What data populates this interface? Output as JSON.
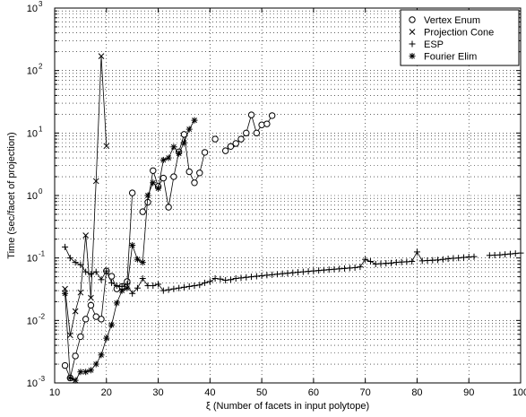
{
  "chart_data": {
    "type": "line",
    "title": "",
    "xlabel": "ξ (Number of facets in input polytope)",
    "ylabel": "Time (sec/facet of projection)",
    "xlim": [
      10,
      100
    ],
    "ylim": [
      0.001,
      1000
    ],
    "yscale": "log",
    "grid": true,
    "legend_position": "top-right",
    "x_ticks": [
      10,
      20,
      30,
      40,
      50,
      60,
      70,
      80,
      90,
      100
    ],
    "x_tick_labels": [
      "10",
      "20",
      "30",
      "40",
      "50",
      "60",
      "70",
      "80",
      "90",
      "100"
    ],
    "y_ticks": [
      0.001,
      0.01,
      0.1,
      1,
      10,
      100,
      1000
    ],
    "y_tick_labels": [
      {
        "base": "10",
        "exp": "-3"
      },
      {
        "base": "10",
        "exp": "-2"
      },
      {
        "base": "10",
        "exp": "-1"
      },
      {
        "base": "10",
        "exp": "0"
      },
      {
        "base": "10",
        "exp": "1"
      },
      {
        "base": "10",
        "exp": "2"
      },
      {
        "base": "10",
        "exp": "3"
      }
    ],
    "series": [
      {
        "name": "Vertex Enum",
        "marker": "circle",
        "points": [
          [
            12,
            0.0019
          ],
          [
            13,
            0.0012
          ],
          [
            14,
            0.0027
          ],
          [
            15,
            0.0055
          ],
          [
            16,
            0.0105
          ],
          [
            17,
            0.0175
          ],
          [
            18,
            0.0115
          ],
          [
            19,
            0.0105
          ],
          [
            20,
            0.062
          ],
          [
            21,
            0.051
          ],
          [
            22,
            0.032
          ],
          [
            23,
            0.035
          ],
          [
            24,
            0.042
          ],
          [
            25,
            1.1
          ],
          [
            27,
            0.55
          ],
          [
            28,
            0.78
          ],
          [
            29,
            2.5
          ],
          [
            30,
            1.4
          ],
          [
            31,
            1.9
          ],
          [
            32,
            0.65
          ],
          [
            33,
            2.0
          ],
          [
            34,
            5.0
          ],
          [
            35,
            9.5
          ],
          [
            36,
            2.4
          ],
          [
            37,
            1.6
          ],
          [
            38,
            2.3
          ],
          [
            39,
            4.9
          ],
          [
            41,
            8.0
          ],
          [
            43,
            5.2
          ],
          [
            44,
            6.1
          ],
          [
            45,
            6.8
          ],
          [
            46,
            8.0
          ],
          [
            47,
            10.0
          ],
          [
            48,
            19.5
          ],
          [
            49,
            10.0
          ],
          [
            50,
            13.5
          ],
          [
            51,
            14.0
          ],
          [
            52,
            19.0
          ]
        ]
      },
      {
        "name": "Projection Cone",
        "marker": "x",
        "points": [
          [
            12,
            0.032
          ],
          [
            13,
            0.0058
          ],
          [
            14,
            0.014
          ],
          [
            15,
            0.028
          ],
          [
            16,
            0.23
          ],
          [
            17,
            0.023
          ],
          [
            18,
            1.7
          ],
          [
            19,
            170
          ],
          [
            20,
            6.2
          ]
        ]
      },
      {
        "name": "ESP",
        "marker": "plus",
        "points": [
          [
            12,
            0.15
          ],
          [
            13,
            0.1
          ],
          [
            14,
            0.085
          ],
          [
            15,
            0.078
          ],
          [
            16,
            0.06
          ],
          [
            17,
            0.055
          ],
          [
            18,
            0.06
          ],
          [
            19,
            0.045
          ],
          [
            20,
            0.062
          ],
          [
            21,
            0.04
          ],
          [
            22,
            0.036
          ],
          [
            23,
            0.035
          ],
          [
            24,
            0.038
          ],
          [
            25,
            0.027
          ],
          [
            26,
            0.033
          ],
          [
            27,
            0.047
          ],
          [
            28,
            0.036
          ],
          [
            29,
            0.036
          ],
          [
            30,
            0.038
          ],
          [
            31,
            0.03
          ],
          [
            32,
            0.031
          ],
          [
            33,
            0.032
          ],
          [
            34,
            0.033
          ],
          [
            35,
            0.034
          ],
          [
            36,
            0.035
          ],
          [
            37,
            0.036
          ],
          [
            38,
            0.037
          ],
          [
            39,
            0.04
          ],
          [
            40,
            0.042
          ],
          [
            41,
            0.047
          ],
          [
            42,
            0.046
          ],
          [
            43,
            0.044
          ],
          [
            44,
            0.045
          ],
          [
            45,
            0.047
          ],
          [
            46,
            0.048
          ],
          [
            47,
            0.049
          ],
          [
            48,
            0.05
          ],
          [
            49,
            0.051
          ],
          [
            50,
            0.052
          ],
          [
            51,
            0.053
          ],
          [
            52,
            0.054
          ],
          [
            53,
            0.055
          ],
          [
            54,
            0.056
          ],
          [
            55,
            0.057
          ],
          [
            56,
            0.058
          ],
          [
            57,
            0.059
          ],
          [
            58,
            0.06
          ],
          [
            59,
            0.061
          ],
          [
            60,
            0.062
          ],
          [
            61,
            0.063
          ],
          [
            62,
            0.064
          ],
          [
            63,
            0.065
          ],
          [
            64,
            0.066
          ],
          [
            65,
            0.067
          ],
          [
            66,
            0.068
          ],
          [
            67,
            0.069
          ],
          [
            68,
            0.07
          ],
          [
            69,
            0.072
          ],
          [
            70,
            0.095
          ],
          [
            71,
            0.088
          ],
          [
            72,
            0.08
          ],
          [
            73,
            0.081
          ],
          [
            74,
            0.082
          ],
          [
            75,
            0.083
          ],
          [
            76,
            0.085
          ],
          [
            77,
            0.086
          ],
          [
            78,
            0.087
          ],
          [
            79,
            0.088
          ],
          [
            80,
            0.125
          ],
          [
            81,
            0.09
          ],
          [
            82,
            0.091
          ],
          [
            83,
            0.092
          ],
          [
            84,
            0.093
          ],
          [
            85,
            0.095
          ],
          [
            86,
            0.097
          ],
          [
            87,
            0.099
          ],
          [
            88,
            0.1
          ],
          [
            89,
            0.102
          ],
          [
            90,
            0.104
          ],
          [
            91,
            0.105
          ],
          [
            94,
            0.11
          ],
          [
            95,
            0.111
          ],
          [
            96,
            0.112
          ],
          [
            97,
            0.114
          ],
          [
            98,
            0.116
          ],
          [
            99,
            0.118
          ],
          [
            100,
            0.12
          ]
        ]
      },
      {
        "name": "Fourier Elim",
        "marker": "star",
        "points": [
          [
            12,
            0.027
          ],
          [
            13,
            0.0012
          ],
          [
            14,
            0.0011
          ],
          [
            15,
            0.0015
          ],
          [
            16,
            0.0015
          ],
          [
            17,
            0.0016
          ],
          [
            18,
            0.002
          ],
          [
            19,
            0.0028
          ],
          [
            20,
            0.0052
          ],
          [
            21,
            0.0085
          ],
          [
            22,
            0.019
          ],
          [
            23,
            0.03
          ],
          [
            24,
            0.033
          ],
          [
            25,
            0.16
          ],
          [
            26,
            0.095
          ],
          [
            27,
            0.085
          ],
          [
            28,
            1.0
          ],
          [
            29,
            1.6
          ],
          [
            30,
            1.3
          ],
          [
            31,
            3.7
          ],
          [
            32,
            4.0
          ],
          [
            33,
            6.0
          ],
          [
            34,
            4.7
          ],
          [
            35,
            7.0
          ],
          [
            36,
            11.5
          ],
          [
            37,
            16.0
          ]
        ]
      }
    ]
  }
}
